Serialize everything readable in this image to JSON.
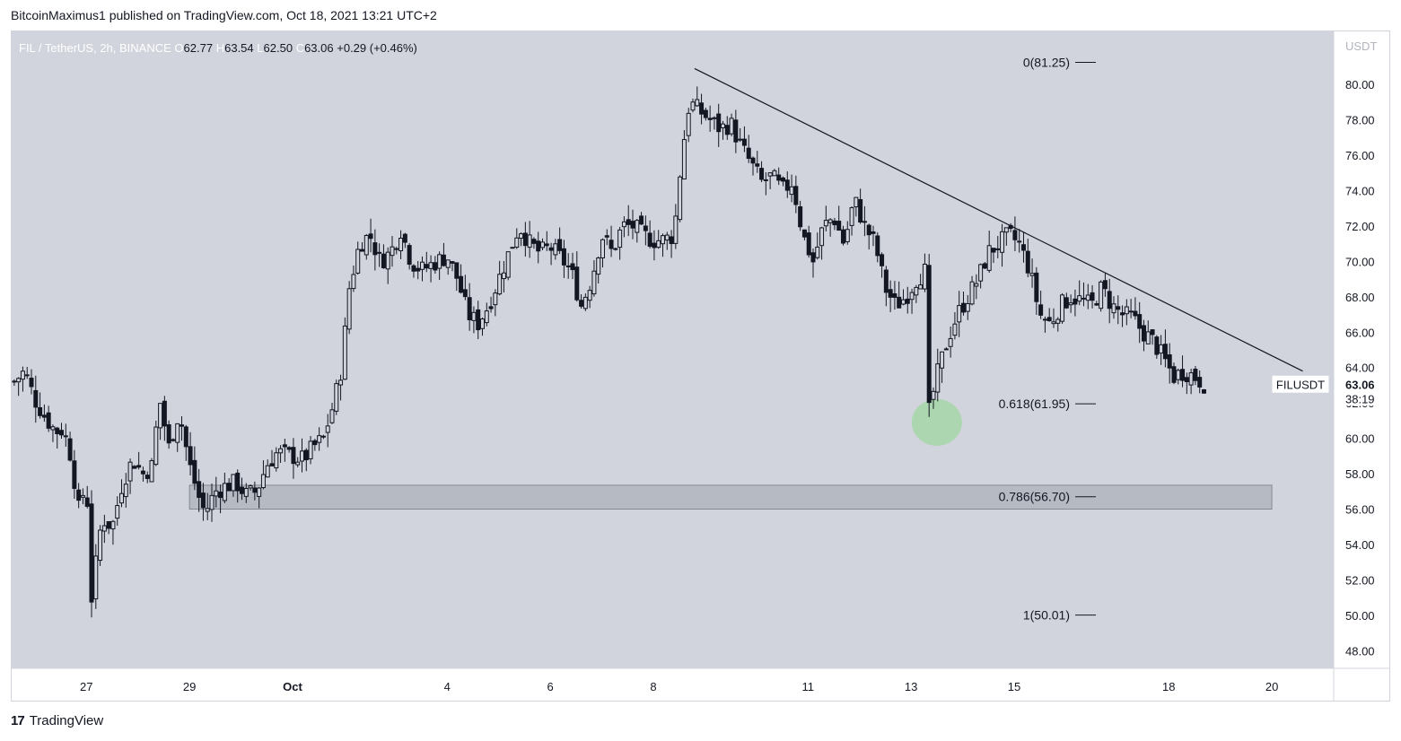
{
  "publication_line": "BitcoinMaximus1 published on TradingView.com, Oct 18, 2021 13:21 UTC+2",
  "footer": {
    "logo_mark": "17",
    "brand": "TradingView"
  },
  "colors": {
    "plot_bg": "#d1d4dc",
    "candle": "#131722",
    "zone_fill": "#b2b5be",
    "highlight": "#a5d6a7",
    "price_label_bg": "#ffffff"
  },
  "chart_data": {
    "type": "candlestick",
    "legend": {
      "symbol": "FIL / TetherUS, 2h, BINANCE",
      "o_label": "O",
      "o": "62.77",
      "h_label": "H",
      "h": "63.54",
      "l_label": "L",
      "l": "62.50",
      "c_label": "C",
      "c": "63.06",
      "change": "+0.29 (+0.46%)"
    },
    "currency": "USDT",
    "y_range": [
      47,
      83
    ],
    "y_ticks": [
      "80.00",
      "78.00",
      "76.00",
      "74.00",
      "72.00",
      "70.00",
      "68.00",
      "66.00",
      "64.00",
      "62.00",
      "60.00",
      "58.00",
      "56.00",
      "54.00",
      "52.00",
      "50.00",
      "48.00"
    ],
    "x_range_days": [
      25.55,
      51.2
    ],
    "x_ticks": [
      {
        "label": "27",
        "day": 27
      },
      {
        "label": "29",
        "day": 29
      },
      {
        "label": "Oct",
        "day": 31
      },
      {
        "label": "4",
        "day": 34
      },
      {
        "label": "6",
        "day": 36
      },
      {
        "label": "8",
        "day": 38
      },
      {
        "label": "11",
        "day": 41
      },
      {
        "label": "13",
        "day": 43
      },
      {
        "label": "15",
        "day": 45
      },
      {
        "label": "18",
        "day": 48
      },
      {
        "label": "20",
        "day": 50
      }
    ],
    "last_price": {
      "label": "FILUSDT",
      "value": "63.06",
      "countdown": "38:19"
    },
    "fib_levels": [
      {
        "label": "0(81.25)",
        "value": 81.25
      },
      {
        "label": "0.618(61.95)",
        "value": 61.95
      },
      {
        "label": "0.786(56.70)",
        "value": 56.7
      },
      {
        "label": "1(50.01)",
        "value": 50.01
      }
    ],
    "support_zone": {
      "from_day": 29,
      "to_day": 50,
      "low": 56.0,
      "high": 57.35
    },
    "trendline": {
      "start": {
        "day": 38.8,
        "price": 80.9
      },
      "end": {
        "day": 50.6,
        "price": 63.8
      }
    },
    "highlight": {
      "day": 43.5,
      "price": 60.9
    },
    "close_path": [
      [
        25.6,
        63.2
      ],
      [
        25.8,
        63.8
      ],
      [
        26.0,
        62.2
      ],
      [
        26.2,
        61.2
      ],
      [
        26.4,
        60.4
      ],
      [
        26.55,
        60.5
      ],
      [
        26.7,
        59.0
      ],
      [
        26.85,
        56.0
      ],
      [
        27.0,
        57.5
      ],
      [
        27.1,
        51.0
      ],
      [
        27.3,
        55.5
      ],
      [
        27.5,
        55.0
      ],
      [
        27.7,
        57.5
      ],
      [
        27.9,
        58.8
      ],
      [
        28.1,
        58.0
      ],
      [
        28.3,
        58.5
      ],
      [
        28.4,
        62.5
      ],
      [
        28.6,
        59.5
      ],
      [
        28.8,
        61.5
      ],
      [
        29.0,
        58.5
      ],
      [
        29.1,
        57.5
      ],
      [
        29.2,
        56.5
      ],
      [
        29.3,
        55.8
      ],
      [
        29.5,
        57.0
      ],
      [
        29.7,
        57.3
      ],
      [
        29.9,
        57.5
      ],
      [
        30.1,
        56.8
      ],
      [
        30.3,
        57.0
      ],
      [
        30.5,
        58.5
      ],
      [
        30.7,
        59.2
      ],
      [
        31.0,
        59.0
      ],
      [
        31.2,
        58.8
      ],
      [
        31.4,
        59.5
      ],
      [
        31.6,
        60.0
      ],
      [
        31.8,
        62.0
      ],
      [
        31.95,
        64.0
      ],
      [
        32.1,
        68.5
      ],
      [
        32.3,
        71.0
      ],
      [
        32.5,
        71.5
      ],
      [
        32.7,
        70.0
      ],
      [
        32.9,
        70.5
      ],
      [
        33.1,
        71.8
      ],
      [
        33.3,
        70.0
      ],
      [
        33.5,
        69.5
      ],
      [
        33.8,
        70.0
      ],
      [
        34.0,
        70.3
      ],
      [
        34.2,
        69.0
      ],
      [
        34.4,
        67.0
      ],
      [
        34.6,
        66.5
      ],
      [
        34.8,
        67.5
      ],
      [
        35.0,
        69.0
      ],
      [
        35.2,
        70.5
      ],
      [
        35.4,
        72.0
      ],
      [
        35.6,
        71.0
      ],
      [
        35.8,
        70.5
      ],
      [
        36.0,
        70.8
      ],
      [
        36.2,
        70.2
      ],
      [
        36.4,
        69.5
      ],
      [
        36.6,
        67.5
      ],
      [
        36.8,
        69.0
      ],
      [
        37.0,
        71.5
      ],
      [
        37.2,
        70.5
      ],
      [
        37.4,
        72.0
      ],
      [
        37.6,
        72.0
      ],
      [
        37.8,
        71.5
      ],
      [
        38.0,
        71.2
      ],
      [
        38.2,
        71.2
      ],
      [
        38.4,
        71.5
      ],
      [
        38.55,
        76.0
      ],
      [
        38.7,
        79.0
      ],
      [
        38.9,
        78.5
      ],
      [
        39.1,
        78.0
      ],
      [
        39.3,
        77.5
      ],
      [
        39.5,
        77.8
      ],
      [
        39.7,
        76.5
      ],
      [
        39.9,
        75.5
      ],
      [
        40.1,
        74.5
      ],
      [
        40.3,
        74.8
      ],
      [
        40.5,
        74.0
      ],
      [
        40.7,
        74.5
      ],
      [
        40.9,
        71.5
      ],
      [
        41.1,
        70.0
      ],
      [
        41.3,
        72.0
      ],
      [
        41.5,
        72.5
      ],
      [
        41.7,
        71.0
      ],
      [
        41.9,
        73.5
      ],
      [
        42.1,
        72.0
      ],
      [
        42.3,
        71.0
      ],
      [
        42.5,
        68.5
      ],
      [
        42.7,
        67.5
      ],
      [
        42.9,
        68.0
      ],
      [
        43.1,
        69.0
      ],
      [
        43.3,
        69.5
      ],
      [
        43.35,
        61.5
      ],
      [
        43.5,
        63.5
      ],
      [
        43.7,
        65.5
      ],
      [
        43.9,
        67.0
      ],
      [
        44.1,
        68.0
      ],
      [
        44.3,
        69.0
      ],
      [
        44.5,
        70.5
      ],
      [
        44.7,
        71.0
      ],
      [
        44.9,
        71.5
      ],
      [
        45.1,
        71.0
      ],
      [
        45.3,
        69.5
      ],
      [
        45.5,
        67.0
      ],
      [
        45.7,
        66.5
      ],
      [
        45.9,
        67.5
      ],
      [
        46.1,
        68.0
      ],
      [
        46.3,
        67.8
      ],
      [
        46.5,
        67.5
      ],
      [
        46.7,
        68.5
      ],
      [
        46.9,
        67.5
      ],
      [
        47.1,
        67.0
      ],
      [
        47.3,
        66.8
      ],
      [
        47.5,
        66.0
      ],
      [
        47.7,
        65.5
      ],
      [
        47.9,
        64.5
      ],
      [
        48.1,
        63.5
      ],
      [
        48.3,
        63.8
      ],
      [
        48.5,
        63.5
      ],
      [
        48.7,
        63.06
      ]
    ]
  }
}
